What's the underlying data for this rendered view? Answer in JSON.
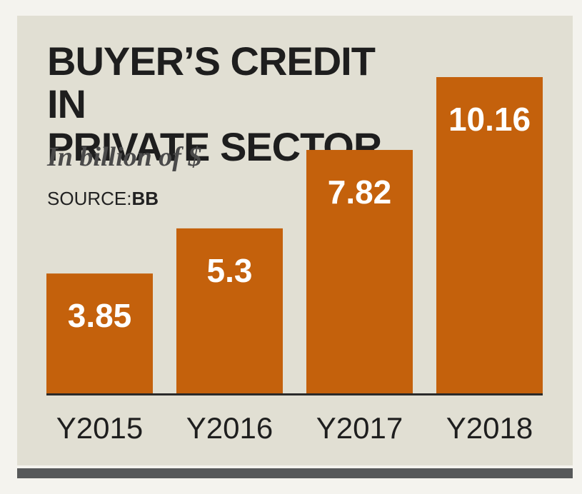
{
  "chart_data": {
    "type": "bar",
    "title": [
      "BUYER’S CREDIT IN",
      "PRIVATE SECTOR"
    ],
    "subtitle": "In billion of $",
    "source_label": "SOURCE:",
    "source_value": "BB",
    "categories": [
      "Y2015",
      "Y2016",
      "Y2017",
      "Y2018"
    ],
    "values": [
      3.85,
      5.3,
      7.82,
      10.16
    ],
    "value_labels": [
      "3.85",
      "5.3",
      "7.82",
      "10.16"
    ],
    "ylim": [
      0,
      10.16
    ],
    "grid": false,
    "legend": "none",
    "bar_color": "#c4610c",
    "label_color": "#ffffff"
  }
}
